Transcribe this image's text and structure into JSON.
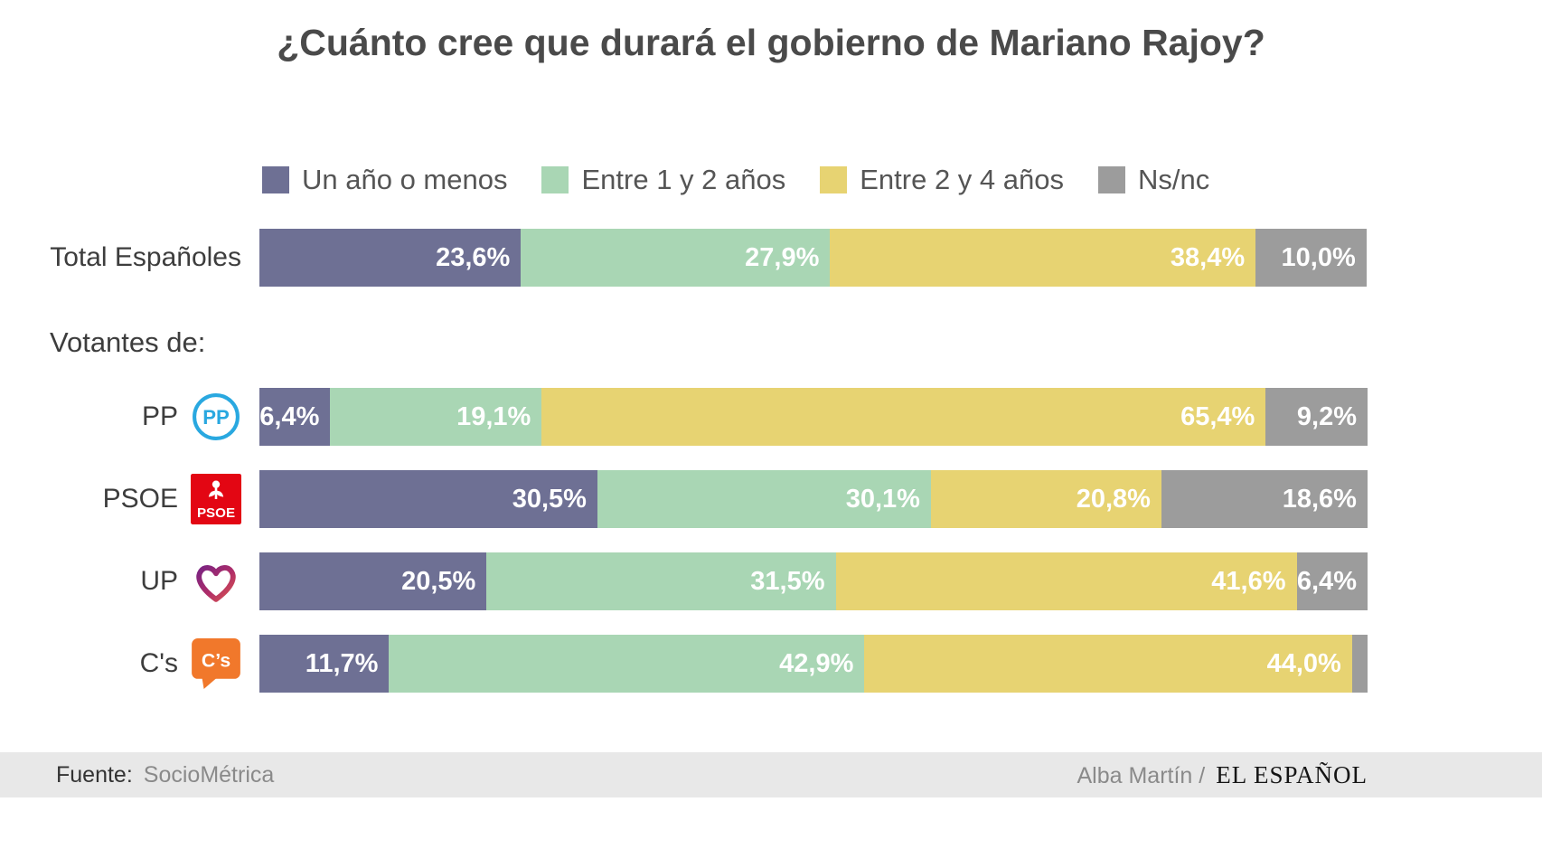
{
  "title": "¿Cuánto cree que durará el gobierno de Mariano Rajoy?",
  "section_label": "Votantes de:",
  "legend": {
    "items": [
      {
        "label": "Un año o menos",
        "color": "#6e7094"
      },
      {
        "label": "Entre 1 y 2 años",
        "color": "#a9d6b4"
      },
      {
        "label": "Entre 2 y 4 años",
        "color": "#e7d372"
      },
      {
        "label": "Ns/nc",
        "color": "#9c9c9c"
      }
    ]
  },
  "chart_data": {
    "type": "bar",
    "orientation": "horizontal",
    "stacked": true,
    "unit": "%",
    "title": "¿Cuánto cree que durará el gobierno de Mariano Rajoy?",
    "legend_position": "top",
    "xlim": [
      0,
      100
    ],
    "categories": [
      "Total Españoles",
      "PP",
      "PSOE",
      "UP",
      "C's"
    ],
    "category_icons": [
      null,
      "pp-logo",
      "psoe-logo",
      "up-logo",
      "cs-logo"
    ],
    "series": [
      {
        "name": "Un año o menos",
        "color": "#6e7094",
        "values": [
          23.6,
          6.4,
          30.5,
          20.5,
          11.7
        ]
      },
      {
        "name": "Entre 1 y 2 años",
        "color": "#a9d6b4",
        "values": [
          27.9,
          19.1,
          30.1,
          31.5,
          42.9
        ]
      },
      {
        "name": "Entre 2 y 4 años",
        "color": "#e7d372",
        "values": [
          38.4,
          65.4,
          20.8,
          41.6,
          44.0
        ]
      },
      {
        "name": "Ns/nc",
        "color": "#9c9c9c",
        "values": [
          10.0,
          9.2,
          18.6,
          6.4,
          1.4
        ]
      }
    ],
    "value_labels": [
      [
        "23,6%",
        "27,9%",
        "38,4%",
        "10,0%"
      ],
      [
        "6,4%",
        "19,1%",
        "65,4%",
        "9,2%"
      ],
      [
        "30,5%",
        "30,1%",
        "20,8%",
        "18,6%"
      ],
      [
        "20,5%",
        "31,5%",
        "41,6%",
        "6,4%"
      ],
      [
        "11,7%",
        "42,9%",
        "44,0%",
        ""
      ]
    ]
  },
  "footer": {
    "source_label": "Fuente:",
    "source_value": "SocioMétrica",
    "credit": "Alba Martín /",
    "brand": "EL ESPAÑOL"
  }
}
